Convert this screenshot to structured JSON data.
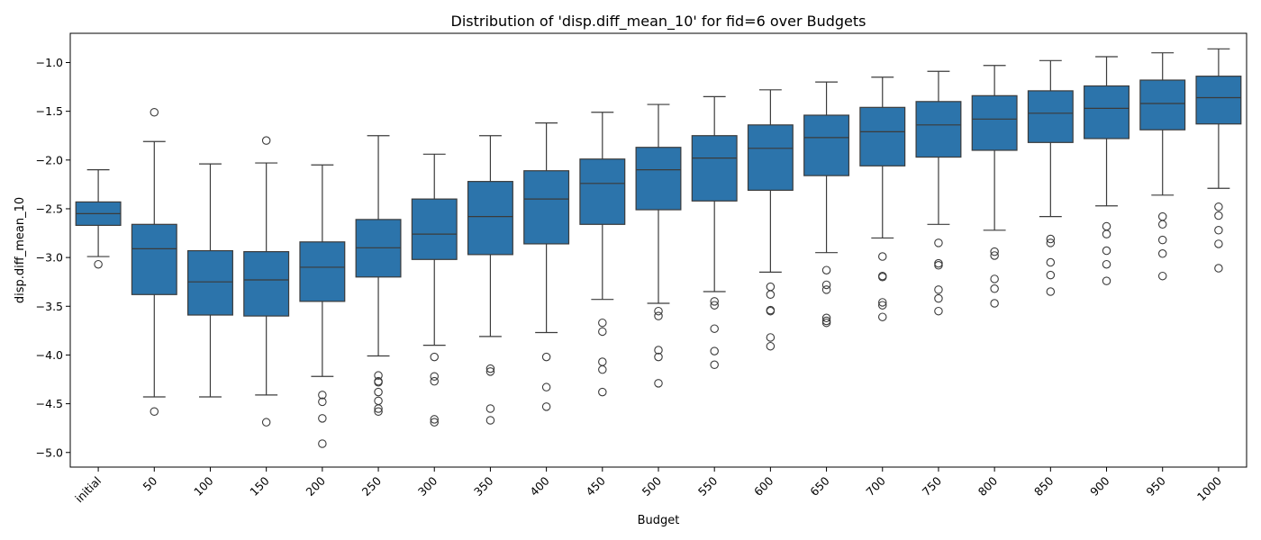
{
  "chart_data": {
    "type": "box",
    "title": "Distribution of 'disp.diff_mean_10' for fid=6 over Budgets",
    "xlabel": "Budget",
    "ylabel": "disp.diff_mean_10",
    "ylim": [
      -5.15,
      -0.7
    ],
    "yticks": [
      -5.0,
      -4.5,
      -4.0,
      -3.5,
      -3.0,
      -2.5,
      -2.0,
      -1.5,
      -1.0
    ],
    "ytick_labels": [
      "−5.0",
      "−4.5",
      "−4.0",
      "−3.5",
      "−3.0",
      "−2.5",
      "−2.0",
      "−1.5",
      "−1.0"
    ],
    "box_color": "#2c74ab",
    "edge_color": "#3b3b3b",
    "grid": false,
    "categories": [
      "initial",
      "50",
      "100",
      "150",
      "200",
      "250",
      "300",
      "350",
      "400",
      "450",
      "500",
      "550",
      "600",
      "650",
      "700",
      "750",
      "800",
      "850",
      "900",
      "950",
      "1000"
    ],
    "boxes": [
      {
        "whislo": -2.99,
        "q1": -2.67,
        "med": -2.55,
        "q3": -2.43,
        "whishi": -2.1,
        "fliers": [
          -3.07
        ]
      },
      {
        "whislo": -4.43,
        "q1": -3.38,
        "med": -2.91,
        "q3": -2.66,
        "whishi": -1.81,
        "fliers": [
          -1.51,
          -4.58
        ]
      },
      {
        "whislo": -4.43,
        "q1": -3.59,
        "med": -3.25,
        "q3": -2.93,
        "whishi": -2.04,
        "fliers": []
      },
      {
        "whislo": -4.41,
        "q1": -3.6,
        "med": -3.23,
        "q3": -2.94,
        "whishi": -2.03,
        "fliers": [
          -1.8,
          -4.69
        ]
      },
      {
        "whislo": -4.22,
        "q1": -3.45,
        "med": -3.1,
        "q3": -2.84,
        "whishi": -2.05,
        "fliers": [
          -4.41,
          -4.48,
          -4.65,
          -4.91
        ]
      },
      {
        "whislo": -4.01,
        "q1": -3.2,
        "med": -2.9,
        "q3": -2.61,
        "whishi": -1.75,
        "fliers": [
          -4.21,
          -4.27,
          -4.28,
          -4.38,
          -4.47,
          -4.55,
          -4.58
        ]
      },
      {
        "whislo": -3.9,
        "q1": -3.02,
        "med": -2.76,
        "q3": -2.4,
        "whishi": -1.94,
        "fliers": [
          -4.02,
          -4.22,
          -4.27,
          -4.66,
          -4.69
        ]
      },
      {
        "whislo": -3.81,
        "q1": -2.97,
        "med": -2.58,
        "q3": -2.22,
        "whishi": -1.75,
        "fliers": [
          -4.14,
          -4.17,
          -4.55,
          -4.67
        ]
      },
      {
        "whislo": -3.77,
        "q1": -2.86,
        "med": -2.4,
        "q3": -2.11,
        "whishi": -1.62,
        "fliers": [
          -4.02,
          -4.33,
          -4.53
        ]
      },
      {
        "whislo": -3.43,
        "q1": -2.66,
        "med": -2.24,
        "q3": -1.99,
        "whishi": -1.51,
        "fliers": [
          -3.67,
          -3.76,
          -4.07,
          -4.15,
          -4.38
        ]
      },
      {
        "whislo": -3.47,
        "q1": -2.51,
        "med": -2.1,
        "q3": -1.87,
        "whishi": -1.43,
        "fliers": [
          -3.55,
          -3.6,
          -3.95,
          -4.02,
          -4.29
        ]
      },
      {
        "whislo": -3.35,
        "q1": -2.42,
        "med": -1.98,
        "q3": -1.75,
        "whishi": -1.35,
        "fliers": [
          -3.45,
          -3.49,
          -3.73,
          -3.96,
          -4.1
        ]
      },
      {
        "whislo": -3.15,
        "q1": -2.31,
        "med": -1.88,
        "q3": -1.64,
        "whishi": -1.28,
        "fliers": [
          -3.3,
          -3.38,
          -3.54,
          -3.55,
          -3.82,
          -3.91
        ]
      },
      {
        "whislo": -2.95,
        "q1": -2.16,
        "med": -1.77,
        "q3": -1.54,
        "whishi": -1.2,
        "fliers": [
          -3.13,
          -3.28,
          -3.33,
          -3.62,
          -3.65,
          -3.67
        ]
      },
      {
        "whislo": -2.8,
        "q1": -2.06,
        "med": -1.71,
        "q3": -1.46,
        "whishi": -1.15,
        "fliers": [
          -2.99,
          -3.19,
          -3.2,
          -3.46,
          -3.49,
          -3.61
        ]
      },
      {
        "whislo": -2.66,
        "q1": -1.97,
        "med": -1.64,
        "q3": -1.4,
        "whishi": -1.09,
        "fliers": [
          -2.85,
          -3.06,
          -3.08,
          -3.33,
          -3.42,
          -3.55
        ]
      },
      {
        "whislo": -2.72,
        "q1": -1.9,
        "med": -1.58,
        "q3": -1.34,
        "whishi": -1.03,
        "fliers": [
          -2.94,
          -2.98,
          -3.22,
          -3.32,
          -3.47
        ]
      },
      {
        "whislo": -2.58,
        "q1": -1.82,
        "med": -1.52,
        "q3": -1.29,
        "whishi": -0.98,
        "fliers": [
          -2.81,
          -2.85,
          -3.05,
          -3.18,
          -3.35
        ]
      },
      {
        "whislo": -2.47,
        "q1": -1.78,
        "med": -1.47,
        "q3": -1.24,
        "whishi": -0.94,
        "fliers": [
          -2.68,
          -2.76,
          -2.93,
          -3.07,
          -3.24
        ]
      },
      {
        "whislo": -2.36,
        "q1": -1.69,
        "med": -1.42,
        "q3": -1.18,
        "whishi": -0.9,
        "fliers": [
          -2.58,
          -2.66,
          -2.82,
          -2.96,
          -3.19
        ]
      },
      {
        "whislo": -2.29,
        "q1": -1.63,
        "med": -1.36,
        "q3": -1.14,
        "whishi": -0.86,
        "fliers": [
          -2.48,
          -2.57,
          -2.72,
          -2.86,
          -3.11
        ]
      }
    ]
  }
}
